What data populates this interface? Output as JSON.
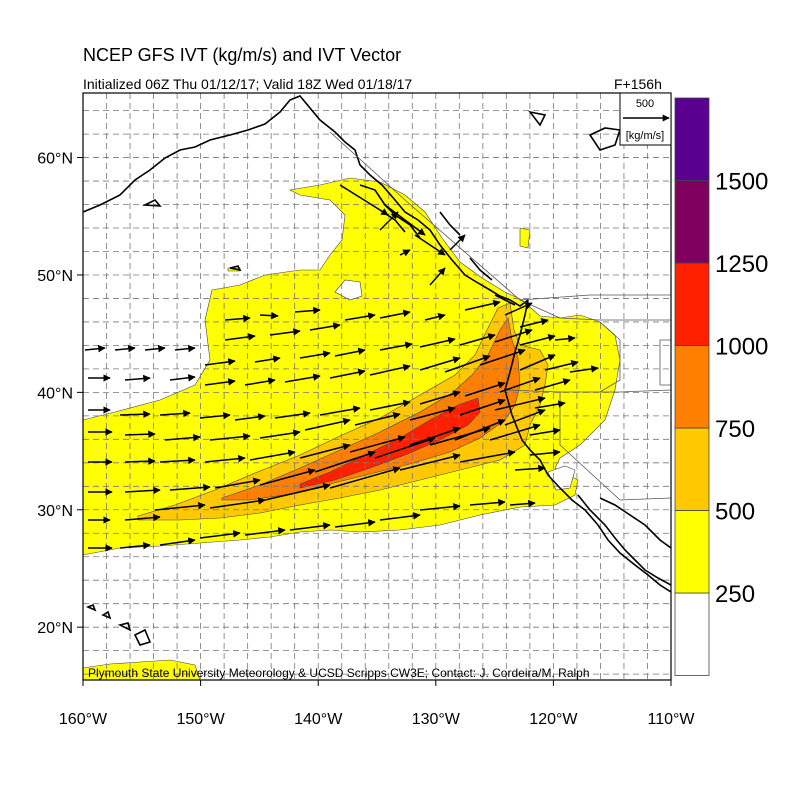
{
  "header": {
    "title": "NCEP GFS IVT (kg/m/s) and IVT Vector",
    "subtitle": "Initialized 06Z Thu 01/12/17; Valid 18Z Wed 01/18/17",
    "forecast_hour": "F+156h"
  },
  "map": {
    "lon_range": [
      -160,
      -110
    ],
    "lat_range": [
      15.5,
      65.5
    ],
    "lat_labels": [
      "20°N",
      "30°N",
      "40°N",
      "50°N",
      "60°N"
    ],
    "lon_labels": [
      "160°W",
      "150°W",
      "140°W",
      "130°W",
      "120°W",
      "110°W"
    ],
    "credit": "Plymouth State University Meteorology & UCSD Scripps CW3E; Contact: J. Cordeira/M. Ralph"
  },
  "reference_vector": {
    "value": "500",
    "unit": "[kg/m/s]"
  },
  "colorbar": {
    "levels": [
      "250",
      "500",
      "750",
      "1000",
      "1250",
      "1500"
    ],
    "colors": [
      "#ffffff",
      "#ffff00",
      "#ffc800",
      "#ff8000",
      "#ff2000",
      "#800060",
      "#5a0090"
    ]
  }
}
